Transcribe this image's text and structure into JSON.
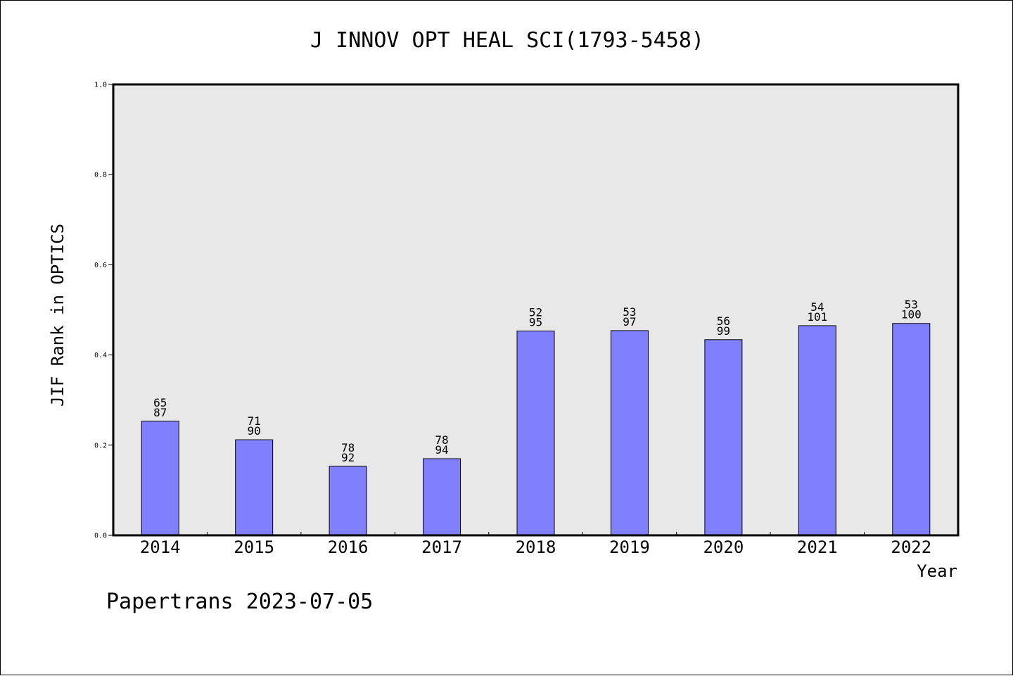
{
  "chart_data": {
    "type": "bar",
    "title": "J INNOV OPT HEAL SCI(1793-5458)",
    "xlabel": "Year",
    "ylabel": "JIF Rank in OPTICS",
    "ylim": [
      0.0,
      1.0
    ],
    "yticks": [
      "0.0",
      "0.2",
      "0.4",
      "0.6",
      "0.8",
      "1.0"
    ],
    "grid": false,
    "categories": [
      "2014",
      "2015",
      "2016",
      "2017",
      "2018",
      "2019",
      "2020",
      "2021",
      "2022"
    ],
    "values": [
      0.253,
      0.212,
      0.153,
      0.17,
      0.453,
      0.454,
      0.434,
      0.465,
      0.47
    ],
    "rank": [
      "65",
      "71",
      "78",
      "78",
      "52",
      "53",
      "56",
      "54",
      "53"
    ],
    "total": [
      "87",
      "90",
      "92",
      "94",
      "95",
      "97",
      "99",
      "101",
      "100"
    ],
    "colors": {
      "bar": "#8080ff",
      "plot_bg": "#e8e8e8",
      "axis": "#000000"
    }
  },
  "footer": "Papertrans 2023-07-05"
}
